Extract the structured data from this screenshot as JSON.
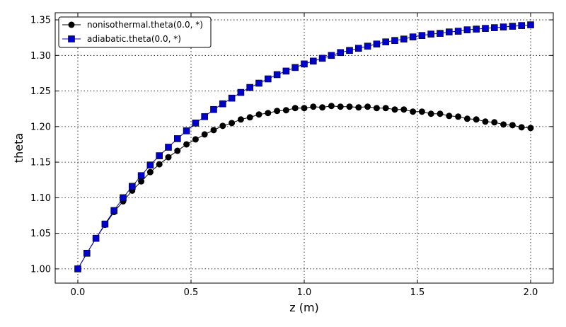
{
  "chart_data": {
    "type": "line",
    "xlabel": "z (m)",
    "ylabel": "theta",
    "xlim": [
      -0.1,
      2.1
    ],
    "ylim": [
      0.98,
      1.36
    ],
    "xticks": [
      0.0,
      0.5,
      1.0,
      1.5,
      2.0
    ],
    "xtick_labels": [
      "0.0",
      "0.5",
      "1.0",
      "1.5",
      "2.0"
    ],
    "yticks": [
      1.0,
      1.05,
      1.1,
      1.15,
      1.2,
      1.25,
      1.3,
      1.35
    ],
    "ytick_labels": [
      "1.00",
      "1.05",
      "1.10",
      "1.15",
      "1.20",
      "1.25",
      "1.30",
      "1.35"
    ],
    "grid": true,
    "legend_position": "top-left",
    "x": [
      0.0,
      0.04,
      0.08,
      0.12,
      0.16,
      0.2,
      0.24,
      0.28,
      0.32,
      0.36,
      0.4,
      0.44,
      0.48,
      0.52,
      0.56,
      0.6,
      0.64,
      0.68,
      0.72,
      0.76,
      0.8,
      0.84,
      0.88,
      0.92,
      0.96,
      1.0,
      1.04,
      1.08,
      1.12,
      1.16,
      1.2,
      1.24,
      1.28,
      1.32,
      1.36,
      1.4,
      1.44,
      1.48,
      1.52,
      1.56,
      1.6,
      1.64,
      1.68,
      1.72,
      1.76,
      1.8,
      1.84,
      1.88,
      1.92,
      1.96,
      2.0
    ],
    "series": [
      {
        "name": "nonisothermal.theta(0.0, *)",
        "color": "#000000",
        "marker": "circle",
        "values": [
          1.0,
          1.022,
          1.043,
          1.062,
          1.08,
          1.095,
          1.11,
          1.123,
          1.136,
          1.147,
          1.157,
          1.166,
          1.175,
          1.182,
          1.189,
          1.195,
          1.201,
          1.205,
          1.21,
          1.213,
          1.217,
          1.219,
          1.222,
          1.223,
          1.226,
          1.226,
          1.228,
          1.227,
          1.229,
          1.228,
          1.228,
          1.227,
          1.228,
          1.226,
          1.226,
          1.224,
          1.224,
          1.221,
          1.221,
          1.218,
          1.218,
          1.215,
          1.214,
          1.211,
          1.21,
          1.207,
          1.206,
          1.203,
          1.202,
          1.199,
          1.198
        ]
      },
      {
        "name": "adiabatic.theta(0.0, *)",
        "color": "#0000cc",
        "marker": "square",
        "values": [
          1.0,
          1.022,
          1.043,
          1.063,
          1.082,
          1.1,
          1.116,
          1.131,
          1.146,
          1.159,
          1.171,
          1.183,
          1.194,
          1.205,
          1.214,
          1.224,
          1.232,
          1.24,
          1.248,
          1.255,
          1.261,
          1.267,
          1.273,
          1.278,
          1.283,
          1.288,
          1.292,
          1.296,
          1.3,
          1.304,
          1.307,
          1.31,
          1.313,
          1.316,
          1.319,
          1.321,
          1.323,
          1.326,
          1.328,
          1.33,
          1.331,
          1.333,
          1.334,
          1.336,
          1.337,
          1.338,
          1.339,
          1.34,
          1.341,
          1.342,
          1.343
        ]
      }
    ]
  }
}
